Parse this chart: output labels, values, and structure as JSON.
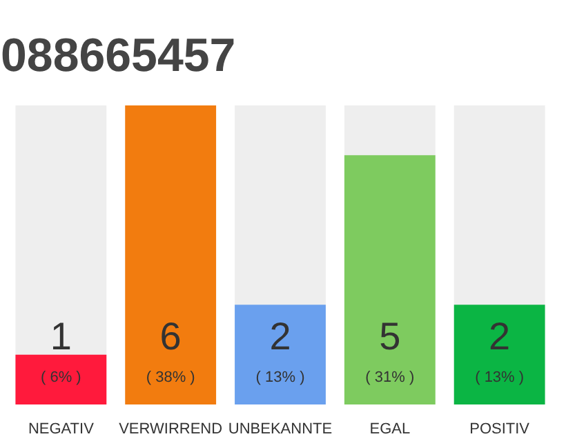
{
  "chart_data": {
    "type": "bar",
    "title": "088665457",
    "categories": [
      "NEGATIV",
      "VERWIRREND",
      "UNBEKANNTE",
      "EGAL",
      "POSITIV"
    ],
    "values": [
      1,
      6,
      2,
      5,
      2
    ],
    "colors": [
      "#ff1a3c",
      "#f27c0f",
      "#6aa0ee",
      "#7ecb5f",
      "#0bb544"
    ],
    "ylim": [
      0,
      6
    ],
    "data_labels": true,
    "grid": false,
    "tick_labels": "x",
    "annotations": [
      {
        "text": "( 6% )",
        "x": "NEGATIV",
        "y": 0
      },
      {
        "text": "( 38% )",
        "x": "VERWIRREND",
        "y": 0
      },
      {
        "text": "( 13% )",
        "x": "UNBEKANNTE",
        "y": 0
      },
      {
        "text": "( 31% )",
        "x": "EGAL",
        "y": 0
      },
      {
        "text": "( 13% )",
        "x": "POSITIV",
        "y": 0
      }
    ]
  }
}
